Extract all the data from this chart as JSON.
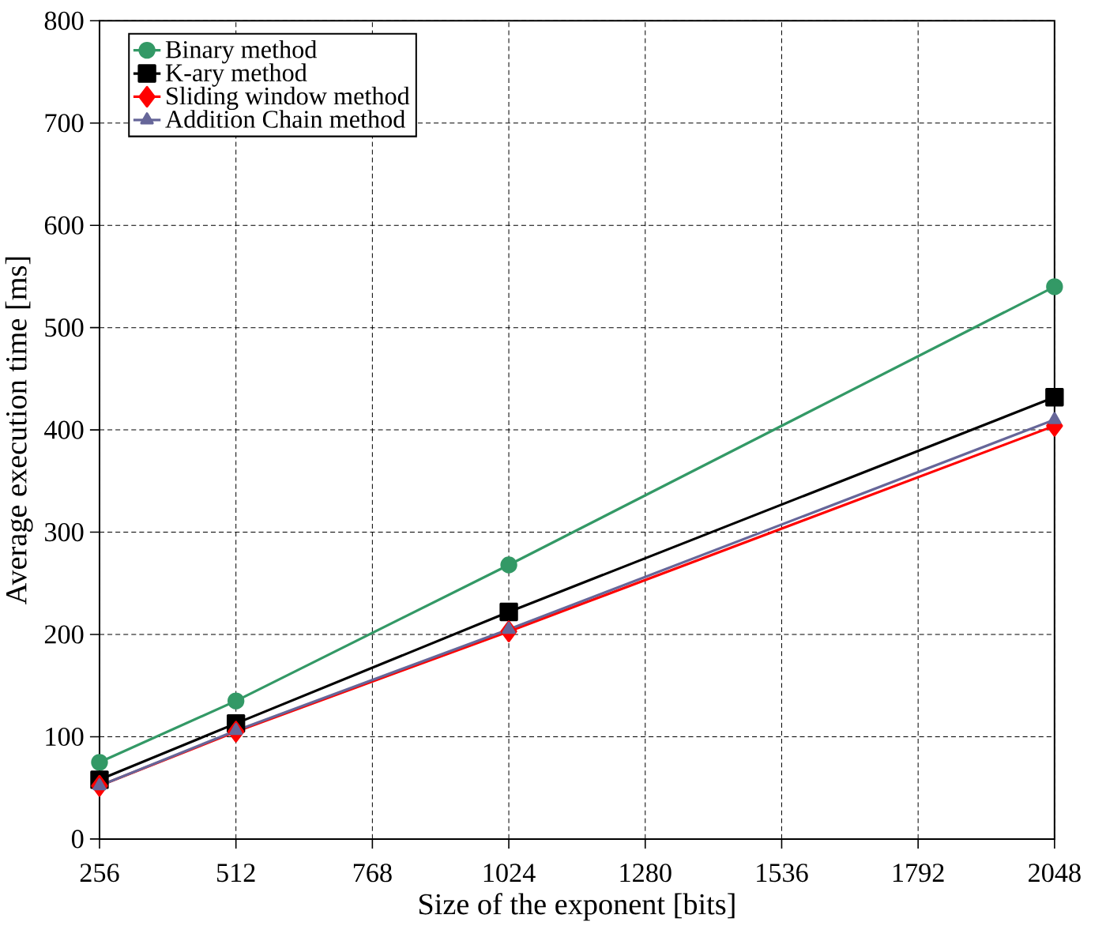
{
  "chart_data": {
    "type": "line",
    "xlabel": "Size of the exponent [bits]",
    "ylabel": "Average execution time [ms]",
    "x": [
      256,
      512,
      1024,
      2048
    ],
    "series": [
      {
        "name": "Binary method",
        "color": "#339966",
        "marker": "circle",
        "values": [
          75,
          135,
          268,
          540
        ]
      },
      {
        "name": "K-ary method",
        "color": "#000000",
        "marker": "square",
        "values": [
          58,
          113,
          222,
          432
        ]
      },
      {
        "name": "Sliding window method",
        "color": "#ff0000",
        "marker": "diamond",
        "values": [
          52,
          105,
          203,
          404
        ]
      },
      {
        "name": "Addition Chain method",
        "color": "#666699",
        "marker": "triangle",
        "values": [
          52,
          106,
          205,
          410
        ]
      }
    ],
    "xlim": [
      256,
      2048
    ],
    "ylim": [
      0,
      800
    ],
    "xticks": [
      256,
      512,
      768,
      1024,
      1280,
      1536,
      1792,
      2048
    ],
    "yticks": [
      0,
      100,
      200,
      300,
      400,
      500,
      600,
      700,
      800
    ],
    "grid": true,
    "legend": "top left",
    "line_style": "solid"
  }
}
